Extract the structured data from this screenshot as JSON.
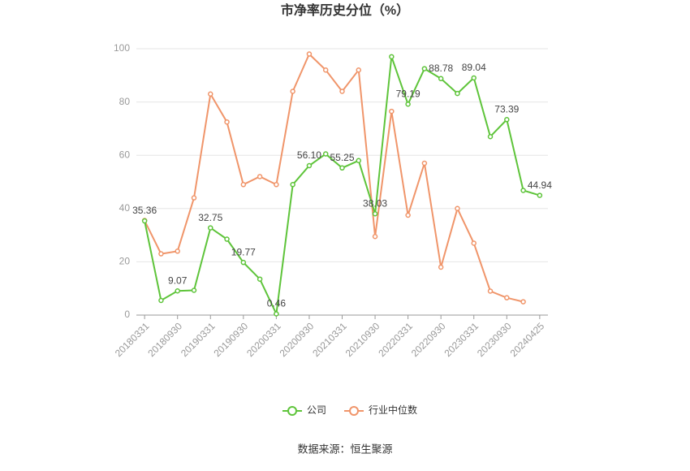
{
  "chart_data": {
    "type": "line",
    "title": "市净率历史分位（%）",
    "categories": [
      "20180331",
      null,
      "20180930",
      null,
      "20190331",
      null,
      "20190930",
      null,
      "20200331",
      null,
      "20200930",
      null,
      "20210331",
      null,
      "20210930",
      null,
      "20220331",
      null,
      "20220930",
      null,
      "20230331",
      null,
      "20230930",
      null,
      "20240425"
    ],
    "series": [
      {
        "name": "公司",
        "color": "#5ec43a",
        "values": [
          35.36,
          5.5,
          9.07,
          9.3,
          32.75,
          28.5,
          19.77,
          13.5,
          0.46,
          49,
          56.1,
          60.5,
          55.25,
          58,
          38.03,
          97,
          79.19,
          92.5,
          88.78,
          83.2,
          89.04,
          67,
          73.39,
          46.8,
          44.94
        ],
        "value_labels": [
          "35.36",
          null,
          "9.07",
          null,
          "32.75",
          null,
          "19.77",
          null,
          "0.46",
          null,
          "56.10",
          null,
          "55.25",
          null,
          "38.03",
          null,
          "79.19",
          null,
          "88.78",
          null,
          "89.04",
          null,
          "73.39",
          null,
          "44.94"
        ]
      },
      {
        "name": "行业中位数",
        "color": "#f0956a",
        "values": [
          35.5,
          23,
          24,
          44,
          83,
          72.5,
          49,
          52,
          49,
          84,
          98,
          92,
          84,
          92,
          29.5,
          76.5,
          37.5,
          57,
          18,
          40,
          27,
          9,
          6.5,
          5,
          null
        ]
      }
    ],
    "ylim": [
      0,
      100
    ],
    "yticks": [
      0,
      20,
      40,
      60,
      80,
      100
    ],
    "grid": true,
    "source": "数据来源：恒生聚源"
  }
}
